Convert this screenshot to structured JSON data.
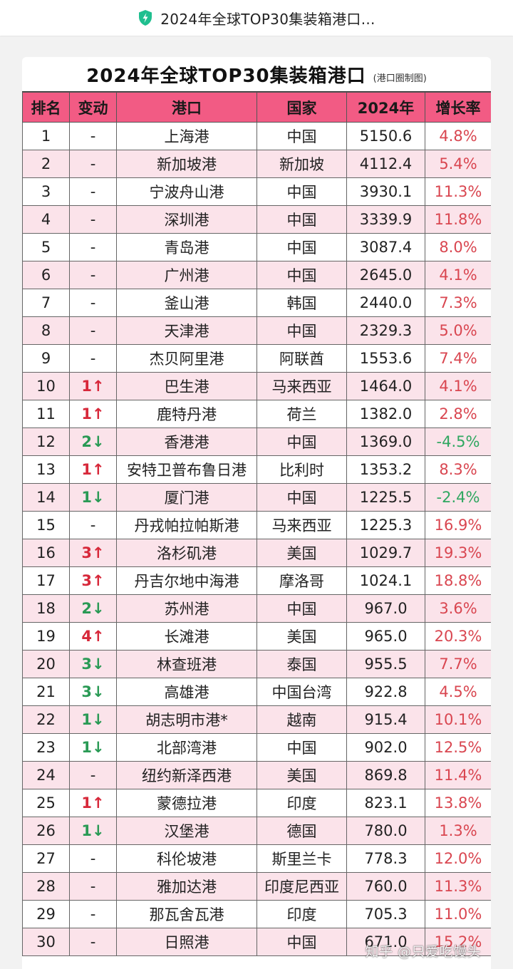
{
  "header": {
    "title": "2024年全球TOP30集装箱港口...",
    "icon": "shield-lightning-icon",
    "accent": "#1fbf8f"
  },
  "table": {
    "title": "2024年全球TOP30集装箱港口",
    "subtitle": "(港口圈制图)",
    "header_color": "#f25b84",
    "columns": [
      "排名",
      "变动",
      "港口",
      "国家",
      "2024年",
      "增长率"
    ],
    "rows": [
      {
        "rank": "1",
        "change": "-",
        "dir": "same",
        "port": "上海港",
        "country": "中国",
        "volume": "5150.6",
        "growth": "4.8%",
        "g": "up"
      },
      {
        "rank": "2",
        "change": "-",
        "dir": "same",
        "port": "新加坡港",
        "country": "新加坡",
        "volume": "4112.4",
        "growth": "5.4%",
        "g": "up"
      },
      {
        "rank": "3",
        "change": "-",
        "dir": "same",
        "port": "宁波舟山港",
        "country": "中国",
        "volume": "3930.1",
        "growth": "11.3%",
        "g": "up"
      },
      {
        "rank": "4",
        "change": "-",
        "dir": "same",
        "port": "深圳港",
        "country": "中国",
        "volume": "3339.9",
        "growth": "11.8%",
        "g": "up"
      },
      {
        "rank": "5",
        "change": "-",
        "dir": "same",
        "port": "青岛港",
        "country": "中国",
        "volume": "3087.4",
        "growth": "8.0%",
        "g": "up"
      },
      {
        "rank": "6",
        "change": "-",
        "dir": "same",
        "port": "广州港",
        "country": "中国",
        "volume": "2645.0",
        "growth": "4.1%",
        "g": "up"
      },
      {
        "rank": "7",
        "change": "-",
        "dir": "same",
        "port": "釜山港",
        "country": "韩国",
        "volume": "2440.0",
        "growth": "7.3%",
        "g": "up"
      },
      {
        "rank": "8",
        "change": "-",
        "dir": "same",
        "port": "天津港",
        "country": "中国",
        "volume": "2329.3",
        "growth": "5.0%",
        "g": "up"
      },
      {
        "rank": "9",
        "change": "-",
        "dir": "same",
        "port": "杰贝阿里港",
        "country": "阿联酋",
        "volume": "1553.6",
        "growth": "7.4%",
        "g": "up"
      },
      {
        "rank": "10",
        "change": "1↑",
        "dir": "up",
        "port": "巴生港",
        "country": "马来西亚",
        "volume": "1464.0",
        "growth": "4.1%",
        "g": "up"
      },
      {
        "rank": "11",
        "change": "1↑",
        "dir": "up",
        "port": "鹿特丹港",
        "country": "荷兰",
        "volume": "1382.0",
        "growth": "2.8%",
        "g": "up"
      },
      {
        "rank": "12",
        "change": "2↓",
        "dir": "down",
        "port": "香港港",
        "country": "中国",
        "volume": "1369.0",
        "growth": "-4.5%",
        "g": "down"
      },
      {
        "rank": "13",
        "change": "1↑",
        "dir": "up",
        "port": "安特卫普布鲁日港",
        "country": "比利时",
        "volume": "1353.2",
        "growth": "8.3%",
        "g": "up"
      },
      {
        "rank": "14",
        "change": "1↓",
        "dir": "down",
        "port": "厦门港",
        "country": "中国",
        "volume": "1225.5",
        "growth": "-2.4%",
        "g": "down"
      },
      {
        "rank": "15",
        "change": "-",
        "dir": "same",
        "port": "丹戎帕拉帕斯港",
        "country": "马来西亚",
        "volume": "1225.3",
        "growth": "16.9%",
        "g": "up"
      },
      {
        "rank": "16",
        "change": "3↑",
        "dir": "up",
        "port": "洛杉矶港",
        "country": "美国",
        "volume": "1029.7",
        "growth": "19.3%",
        "g": "up"
      },
      {
        "rank": "17",
        "change": "3↑",
        "dir": "up",
        "port": "丹吉尔地中海港",
        "country": "摩洛哥",
        "volume": "1024.1",
        "growth": "18.8%",
        "g": "up"
      },
      {
        "rank": "18",
        "change": "2↓",
        "dir": "down",
        "port": "苏州港",
        "country": "中国",
        "volume": "967.0",
        "growth": "3.6%",
        "g": "up"
      },
      {
        "rank": "19",
        "change": "4↑",
        "dir": "up",
        "port": "长滩港",
        "country": "美国",
        "volume": "965.0",
        "growth": "20.3%",
        "g": "up"
      },
      {
        "rank": "20",
        "change": "3↓",
        "dir": "down",
        "port": "林查班港",
        "country": "泰国",
        "volume": "955.5",
        "growth": "7.7%",
        "g": "up"
      },
      {
        "rank": "21",
        "change": "3↓",
        "dir": "down",
        "port": "高雄港",
        "country": "中国台湾",
        "volume": "922.8",
        "growth": "4.5%",
        "g": "up"
      },
      {
        "rank": "22",
        "change": "1↓",
        "dir": "down",
        "port": "胡志明市港*",
        "country": "越南",
        "volume": "915.4",
        "growth": "10.1%",
        "g": "up"
      },
      {
        "rank": "23",
        "change": "1↓",
        "dir": "down",
        "port": "北部湾港",
        "country": "中国",
        "volume": "902.0",
        "growth": "12.5%",
        "g": "up"
      },
      {
        "rank": "24",
        "change": "-",
        "dir": "same",
        "port": "纽约新泽西港",
        "country": "美国",
        "volume": "869.8",
        "growth": "11.4%",
        "g": "up"
      },
      {
        "rank": "25",
        "change": "1↑",
        "dir": "up",
        "port": "蒙德拉港",
        "country": "印度",
        "volume": "823.1",
        "growth": "13.8%",
        "g": "up"
      },
      {
        "rank": "26",
        "change": "1↓",
        "dir": "down",
        "port": "汉堡港",
        "country": "德国",
        "volume": "780.0",
        "growth": "1.3%",
        "g": "up"
      },
      {
        "rank": "27",
        "change": "-",
        "dir": "same",
        "port": "科伦坡港",
        "country": "斯里兰卡",
        "volume": "778.3",
        "growth": "12.0%",
        "g": "up"
      },
      {
        "rank": "28",
        "change": "-",
        "dir": "same",
        "port": "雅加达港",
        "country": "印度尼西亚",
        "volume": "760.0",
        "growth": "11.3%",
        "g": "up"
      },
      {
        "rank": "29",
        "change": "-",
        "dir": "same",
        "port": "那瓦舍瓦港",
        "country": "印度",
        "volume": "705.3",
        "growth": "11.0%",
        "g": "up"
      },
      {
        "rank": "30",
        "change": "-",
        "dir": "same",
        "port": "日照港",
        "country": "中国",
        "volume": "671.0",
        "growth": "15.2%",
        "g": "up"
      }
    ]
  },
  "watermark": "知乎 @只爱吃馒头"
}
